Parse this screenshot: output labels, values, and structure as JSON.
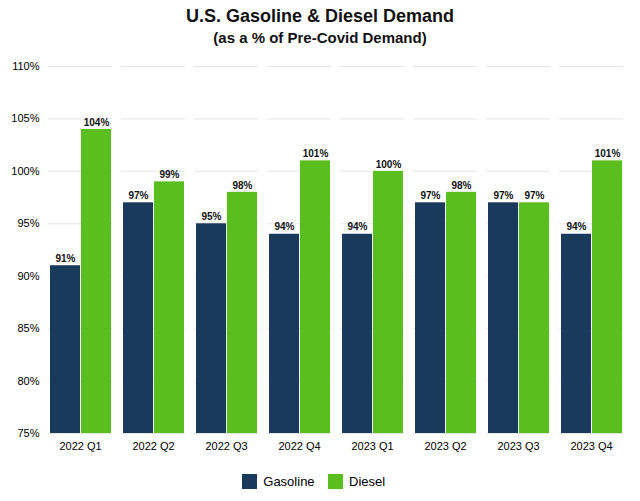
{
  "chart_data": {
    "type": "bar",
    "title": "U.S. Gasoline & Diesel Demand",
    "subtitle": "(as a % of Pre-Covid Demand)",
    "categories": [
      "2022 Q1",
      "2022 Q2",
      "2022 Q3",
      "2022 Q4",
      "2023 Q1",
      "2023 Q2",
      "2023 Q3",
      "2023 Q4"
    ],
    "series": [
      {
        "name": "Gasoline",
        "color": "#1a3a5c",
        "values": [
          91,
          97,
          95,
          94,
          94,
          97,
          97,
          94
        ],
        "value_labels": [
          "91%",
          "97%",
          "95%",
          "94%",
          "94%",
          "97%",
          "97%",
          "94%"
        ]
      },
      {
        "name": "Diesel",
        "color": "#5abf1e",
        "values": [
          104,
          99,
          98,
          101,
          100,
          98,
          97,
          101
        ],
        "value_labels": [
          "104%",
          "99%",
          "98%",
          "101%",
          "100%",
          "98%",
          "97%",
          "101%"
        ]
      }
    ],
    "ylim": [
      75,
      110
    ],
    "yticks": [
      {
        "value": 75,
        "label": "75%"
      },
      {
        "value": 80,
        "label": "80%"
      },
      {
        "value": 85,
        "label": "85%"
      },
      {
        "value": 90,
        "label": "90%"
      },
      {
        "value": 95,
        "label": "95%"
      },
      {
        "value": 100,
        "label": "100%"
      },
      {
        "value": 105,
        "label": "105%"
      },
      {
        "value": 110,
        "label": "110%"
      }
    ],
    "grid": true,
    "legend": "bottom",
    "data_labels": true
  }
}
